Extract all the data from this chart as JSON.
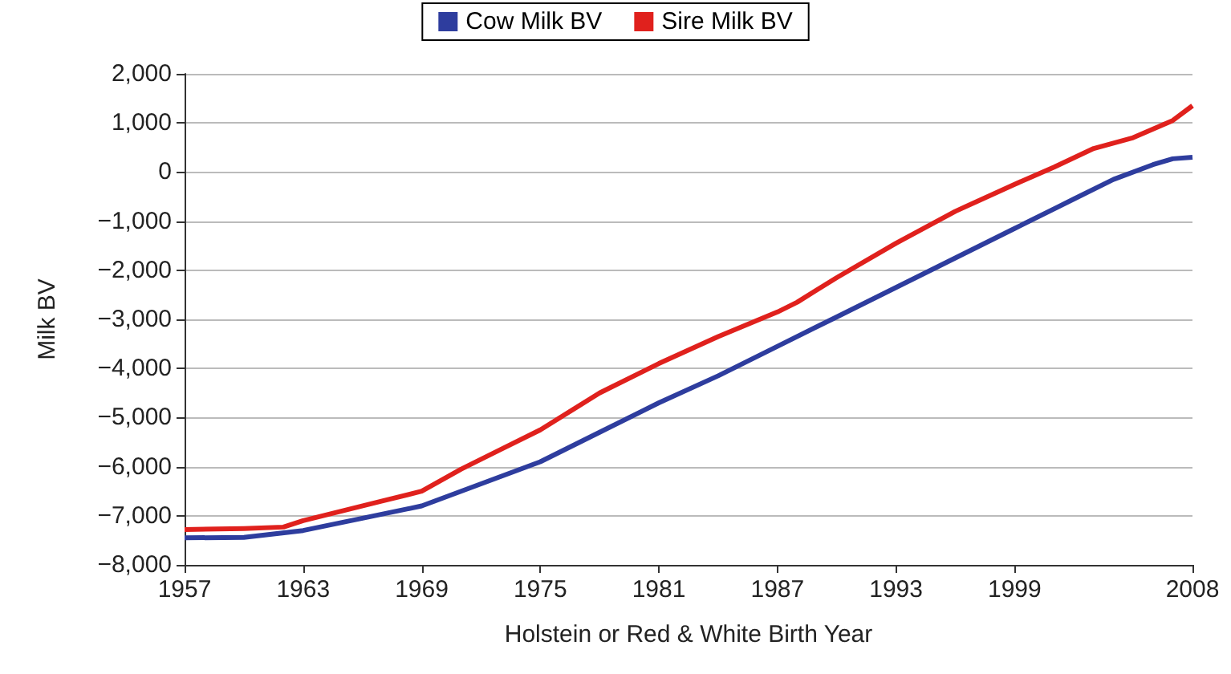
{
  "chart_data": {
    "type": "line",
    "xlabel": "Holstein or Red & White Birth Year",
    "ylabel": "Milk BV",
    "xlim": [
      1957,
      2008
    ],
    "xticks": [
      1957,
      1963,
      1969,
      1975,
      1981,
      1987,
      1993,
      1999,
      2008
    ],
    "ylim": [
      -8000,
      2000
    ],
    "yticks": [
      {
        "value": -8000,
        "label": "−8,000"
      },
      {
        "value": -7000,
        "label": "−7,000"
      },
      {
        "value": -6000,
        "label": "−6,000"
      },
      {
        "value": -5000,
        "label": "−5,000"
      },
      {
        "value": -4000,
        "label": "−4,000"
      },
      {
        "value": -3000,
        "label": "−3,000"
      },
      {
        "value": -2000,
        "label": "−2,000"
      },
      {
        "value": -1000,
        "label": "−1,000"
      },
      0,
      {
        "value": 1000,
        "label": "1,000"
      },
      {
        "value": 2000,
        "label": "2,000"
      }
    ],
    "grid": "y",
    "legend": "top",
    "marker": "none",
    "line_style": "solid",
    "series": [
      {
        "name": "Cow Milk BV",
        "color": "#2e3d9e",
        "x": [
          1957,
          1960,
          1963,
          1966,
          1969,
          1972,
          1975,
          1978,
          1981,
          1984,
          1987,
          1990,
          1993,
          1996,
          1999,
          2002,
          2004,
          2006,
          2007,
          2008
        ],
        "values": [
          -7450,
          -7440,
          -7300,
          -7050,
          -6800,
          -6350,
          -5900,
          -5300,
          -4700,
          -4150,
          -3550,
          -2950,
          -2350,
          -1750,
          -1150,
          -550,
          -150,
          150,
          270,
          300
        ]
      },
      {
        "name": "Sire Milk BV",
        "color": "#e0211d",
        "x": [
          1957,
          1960,
          1962,
          1963,
          1965,
          1967,
          1969,
          1971,
          1973,
          1975,
          1978,
          1981,
          1984,
          1987,
          1988,
          1990,
          1993,
          1996,
          1999,
          2001,
          2003,
          2005,
          2007,
          2008
        ],
        "values": [
          -7280,
          -7260,
          -7230,
          -7100,
          -6900,
          -6700,
          -6500,
          -6050,
          -5650,
          -5250,
          -4500,
          -3900,
          -3350,
          -2850,
          -2650,
          -2150,
          -1450,
          -800,
          -250,
          100,
          480,
          700,
          1050,
          1350
        ]
      }
    ]
  }
}
